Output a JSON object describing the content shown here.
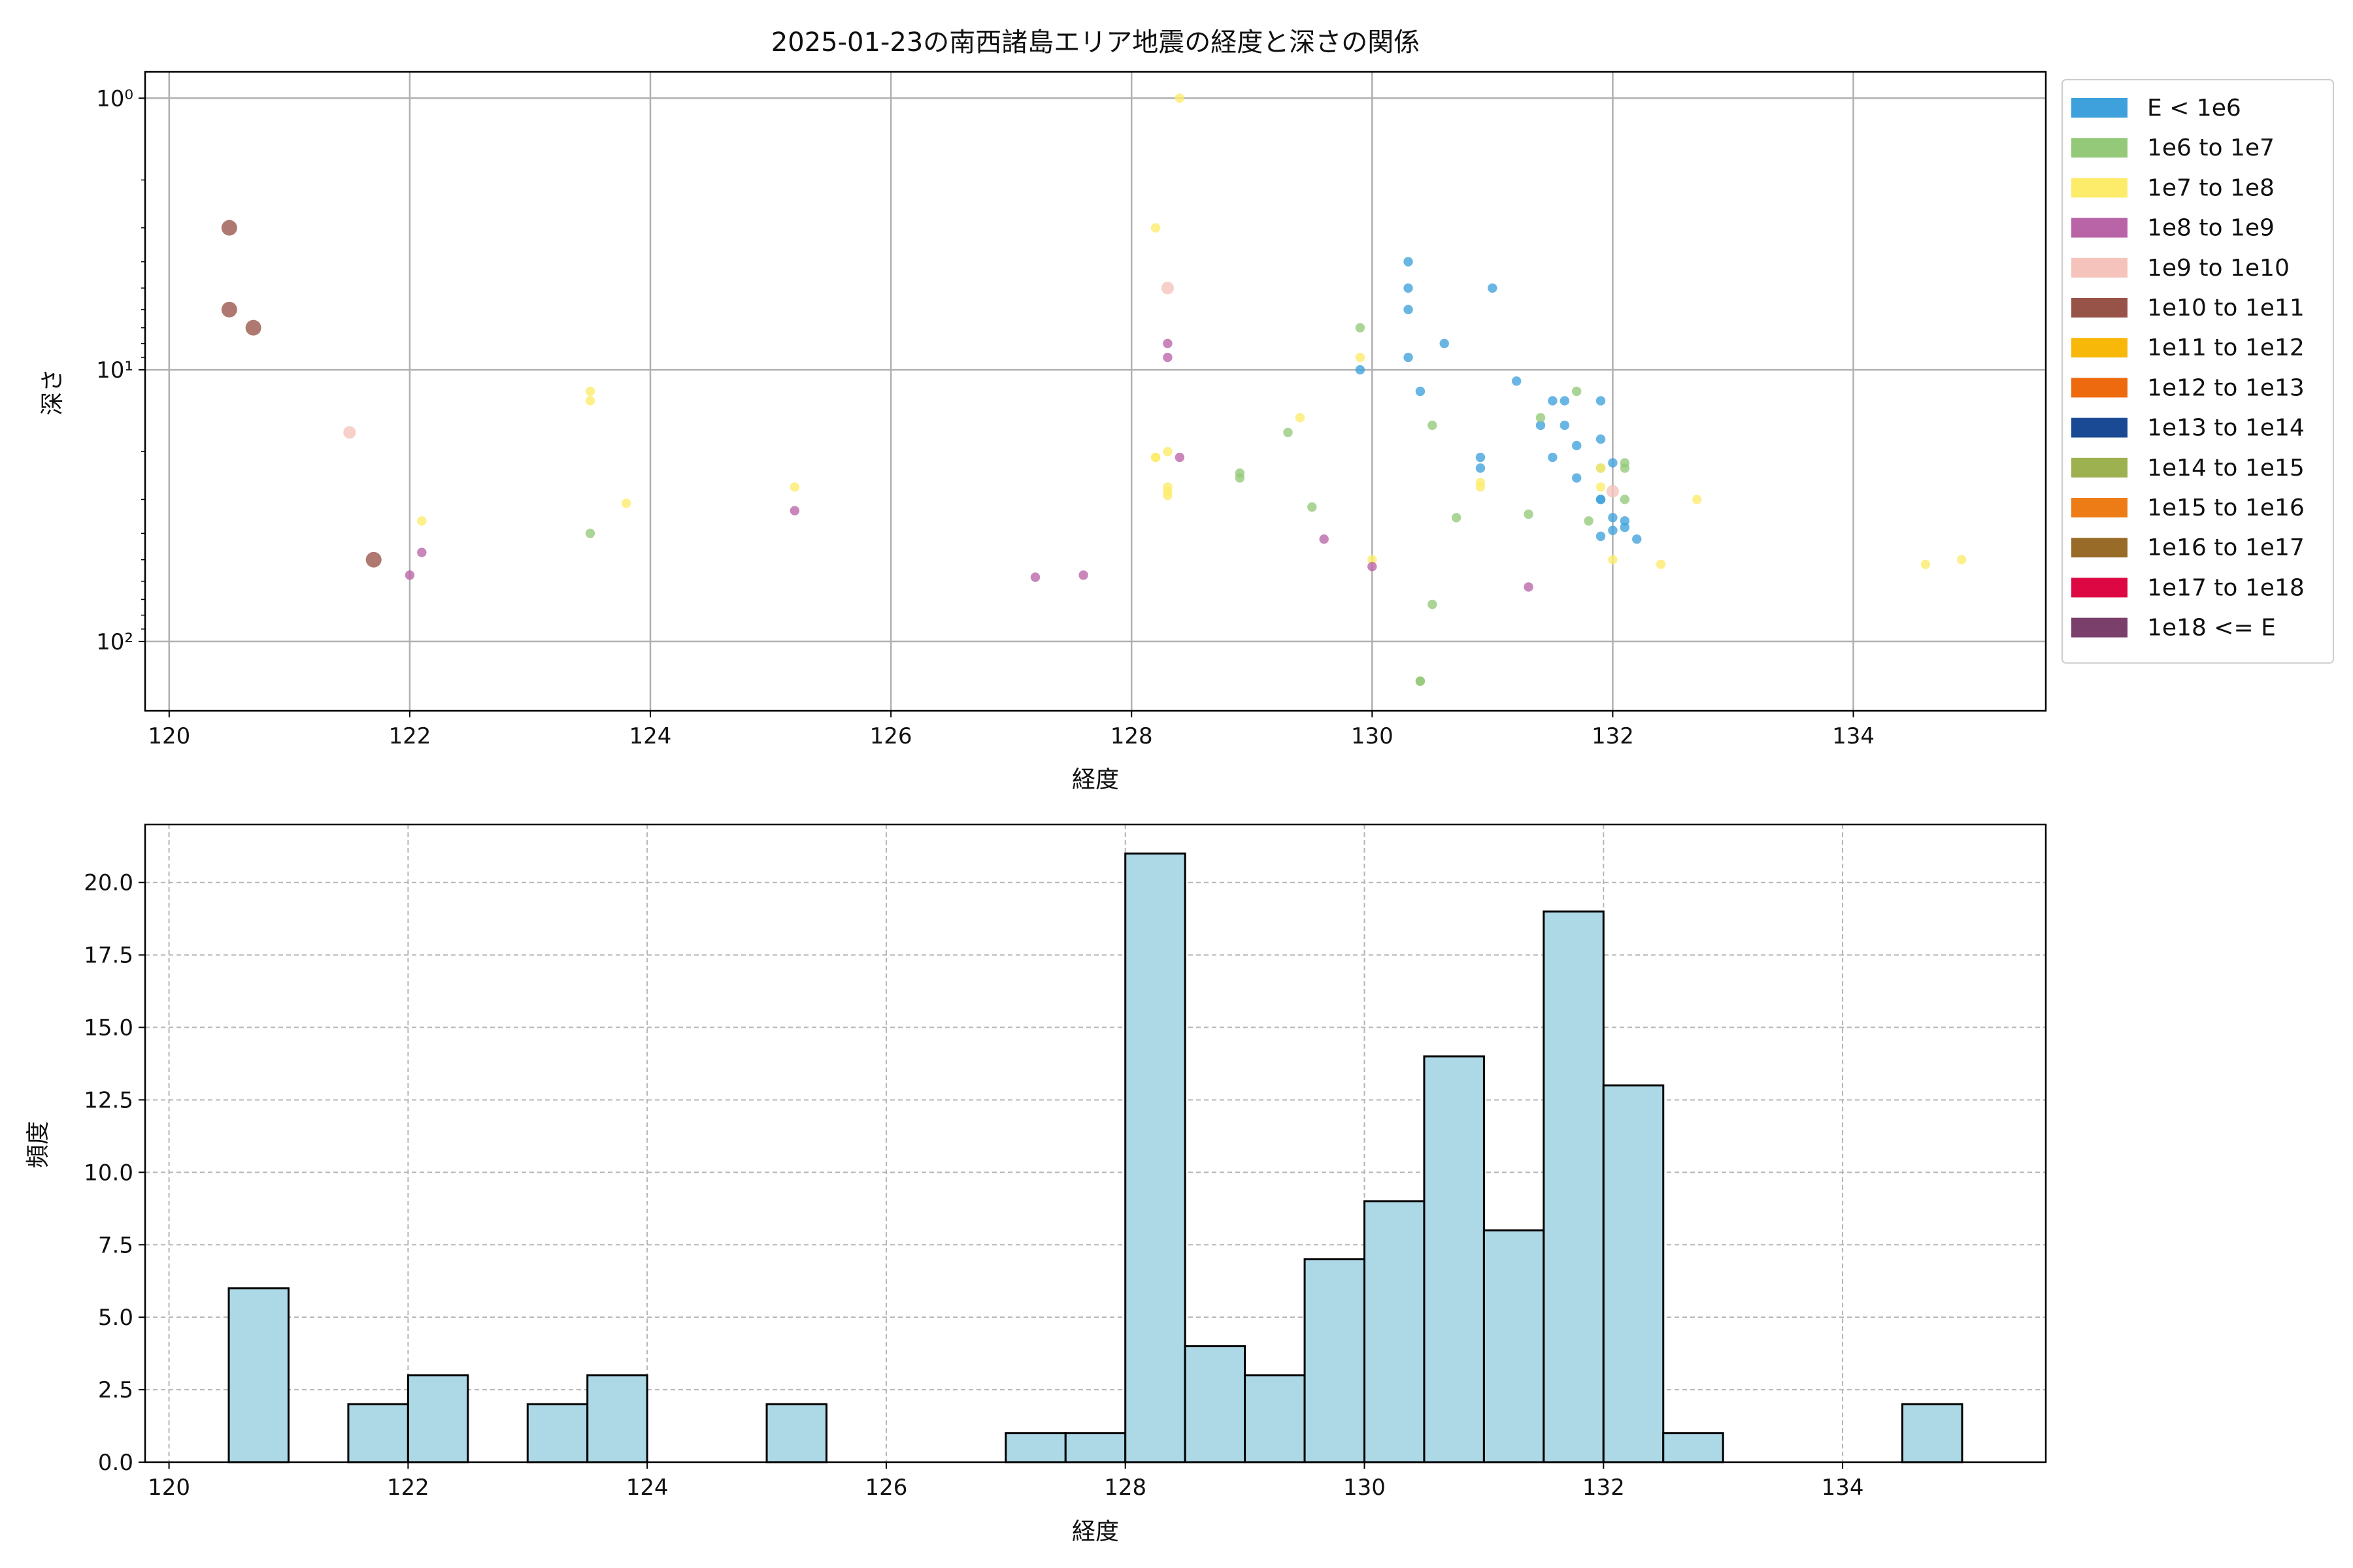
{
  "chart_data": [
    {
      "type": "scatter",
      "title": "2025-01-23の南西諸島エリア地震の経度と深さの関係",
      "xlabel": "経度",
      "ylabel": "深さ",
      "xlim": [
        119.8,
        135.6
      ],
      "ylim": [
        180,
        0.8
      ],
      "y_scale": "log",
      "y_inverted": true,
      "grid": true,
      "x_ticks": [
        120,
        122,
        124,
        126,
        128,
        130,
        132,
        134
      ],
      "y_ticks": [
        {
          "value": 1,
          "label": "10⁰"
        },
        {
          "value": 10,
          "label": "10¹"
        },
        {
          "value": 100,
          "label": "10²"
        }
      ],
      "legend_position": "outside-right",
      "legend": [
        {
          "label": "E < 1e6",
          "color": "#3fa1dc"
        },
        {
          "label": "1e6 to 1e7",
          "color": "#93c979"
        },
        {
          "label": "1e7 to 1e8",
          "color": "#fcec6a"
        },
        {
          "label": "1e8 to 1e9",
          "color": "#b964a6"
        },
        {
          "label": "1e9 to 1e10",
          "color": "#f5c3bb"
        },
        {
          "label": "1e10 to 1e11",
          "color": "#985349"
        },
        {
          "label": "1e11 to 1e12",
          "color": "#f8b80a"
        },
        {
          "label": "1e12 to 1e13",
          "color": "#ee6a0e"
        },
        {
          "label": "1e13 to 1e14",
          "color": "#1a4a93"
        },
        {
          "label": "1e14 to 1e15",
          "color": "#9eb150"
        },
        {
          "label": "1e15 to 1e16",
          "color": "#ed7c16"
        },
        {
          "label": "1e16 to 1e17",
          "color": "#986b28"
        },
        {
          "label": "1e17 to 1e18",
          "color": "#dd0843"
        },
        {
          "label": "1e18 <= E",
          "color": "#7a406b"
        }
      ],
      "series": [
        {
          "name": "E < 1e6",
          "color": "#3fa1dc",
          "size": 3,
          "points": [
            [
              130.3,
              4
            ],
            [
              130.3,
              5
            ],
            [
              130.3,
              6
            ],
            [
              131.0,
              5
            ],
            [
              130.6,
              8
            ],
            [
              130.3,
              9
            ],
            [
              129.9,
              10
            ],
            [
              130.4,
              12
            ],
            [
              131.2,
              11
            ],
            [
              131.4,
              16
            ],
            [
              131.6,
              16
            ],
            [
              131.6,
              13
            ],
            [
              131.5,
              21
            ],
            [
              131.7,
              19
            ],
            [
              131.5,
              13
            ],
            [
              131.9,
              13
            ],
            [
              131.9,
              18
            ],
            [
              130.9,
              21
            ],
            [
              130.9,
              23
            ],
            [
              131.7,
              25
            ],
            [
              132.0,
              22
            ],
            [
              131.9,
              30
            ],
            [
              132.0,
              35
            ],
            [
              132.1,
              36
            ],
            [
              132.1,
              38
            ],
            [
              131.9,
              41
            ],
            [
              132.0,
              39
            ],
            [
              132.2,
              42
            ],
            [
              131.9,
              30
            ]
          ]
        },
        {
          "name": "1e6 to 1e7",
          "color": "#93c979",
          "size": 3,
          "points": [
            [
              129.9,
              7
            ],
            [
              131.4,
              15
            ],
            [
              131.7,
              12
            ],
            [
              130.5,
              16
            ],
            [
              129.3,
              17
            ],
            [
              128.9,
              24
            ],
            [
              128.9,
              25
            ],
            [
              129.5,
              32
            ],
            [
              130.7,
              35
            ],
            [
              131.3,
              34
            ],
            [
              132.1,
              22
            ],
            [
              132.1,
              23
            ],
            [
              131.9,
              23
            ],
            [
              132.1,
              30
            ],
            [
              131.8,
              36
            ],
            [
              123.5,
              40
            ],
            [
              130.5,
              73
            ],
            [
              130.4,
              140
            ],
            [
              130.4,
              140
            ]
          ]
        },
        {
          "name": "1e7 to 1e8",
          "color": "#fcec6a",
          "size": 3,
          "points": [
            [
              128.4,
              1
            ],
            [
              128.2,
              3
            ],
            [
              129.9,
              9
            ],
            [
              123.5,
              12
            ],
            [
              123.5,
              13
            ],
            [
              129.4,
              15
            ],
            [
              128.2,
              21
            ],
            [
              128.3,
              20
            ],
            [
              128.2,
              21
            ],
            [
              128.3,
              27
            ],
            [
              128.3,
              29
            ],
            [
              128.3,
              28
            ],
            [
              125.2,
              27
            ],
            [
              123.8,
              31
            ],
            [
              122.1,
              36
            ],
            [
              130.9,
              26
            ],
            [
              130.9,
              27
            ],
            [
              131.9,
              23
            ],
            [
              131.9,
              27
            ],
            [
              132.7,
              30
            ],
            [
              130.0,
              50
            ],
            [
              132.0,
              50
            ],
            [
              132.4,
              52
            ],
            [
              134.6,
              52
            ],
            [
              134.9,
              50
            ]
          ]
        },
        {
          "name": "1e8 to 1e9",
          "color": "#b964a6",
          "size": 3,
          "points": [
            [
              128.3,
              8
            ],
            [
              128.3,
              9
            ],
            [
              128.4,
              21
            ],
            [
              125.2,
              33
            ],
            [
              122.1,
              47
            ],
            [
              122.0,
              57
            ],
            [
              127.2,
              58
            ],
            [
              127.6,
              57
            ],
            [
              129.6,
              42
            ],
            [
              130.0,
              53
            ],
            [
              131.3,
              63
            ]
          ]
        },
        {
          "name": "1e9 to 1e10",
          "color": "#f5c3bb",
          "size": 4,
          "points": [
            [
              128.3,
              5
            ],
            [
              121.5,
              17
            ],
            [
              132.0,
              28
            ]
          ]
        },
        {
          "name": "1e10 to 1e11",
          "color": "#985349",
          "size": 5,
          "points": [
            [
              120.5,
              3
            ],
            [
              120.5,
              6
            ],
            [
              120.7,
              7
            ],
            [
              121.7,
              50
            ]
          ]
        }
      ]
    },
    {
      "type": "bar",
      "title": "",
      "xlabel": "経度",
      "ylabel": "頻度",
      "xlim": [
        119.8,
        135.7
      ],
      "ylim": [
        0,
        22
      ],
      "grid": true,
      "color": "#add8e6",
      "edge_color": "#000000",
      "x_ticks": [
        120,
        122,
        124,
        126,
        128,
        130,
        132,
        134
      ],
      "y_ticks": [
        "0.0",
        "2.5",
        "5.0",
        "7.5",
        "10.0",
        "12.5",
        "15.0",
        "17.5",
        "20.0"
      ],
      "bins": [
        {
          "x0": 120.5,
          "x1": 121.0,
          "value": 6
        },
        {
          "x0": 121.5,
          "x1": 122.0,
          "value": 2
        },
        {
          "x0": 122.0,
          "x1": 122.5,
          "value": 3
        },
        {
          "x0": 123.0,
          "x1": 123.5,
          "value": 2
        },
        {
          "x0": 123.5,
          "x1": 124.0,
          "value": 3
        },
        {
          "x0": 125.0,
          "x1": 125.5,
          "value": 2
        },
        {
          "x0": 127.0,
          "x1": 127.5,
          "value": 1
        },
        {
          "x0": 127.5,
          "x1": 128.0,
          "value": 1
        },
        {
          "x0": 128.0,
          "x1": 128.5,
          "value": 21
        },
        {
          "x0": 128.5,
          "x1": 129.0,
          "value": 4
        },
        {
          "x0": 129.0,
          "x1": 129.5,
          "value": 3
        },
        {
          "x0": 129.5,
          "x1": 130.0,
          "value": 7
        },
        {
          "x0": 130.0,
          "x1": 130.5,
          "value": 9
        },
        {
          "x0": 130.5,
          "x1": 131.0,
          "value": 14
        },
        {
          "x0": 131.0,
          "x1": 131.5,
          "value": 8
        },
        {
          "x0": 131.5,
          "x1": 132.0,
          "value": 19
        },
        {
          "x0": 132.0,
          "x1": 132.5,
          "value": 13
        },
        {
          "x0": 132.5,
          "x1": 133.0,
          "value": 1
        },
        {
          "x0": 134.5,
          "x1": 135.0,
          "value": 2
        }
      ]
    }
  ]
}
